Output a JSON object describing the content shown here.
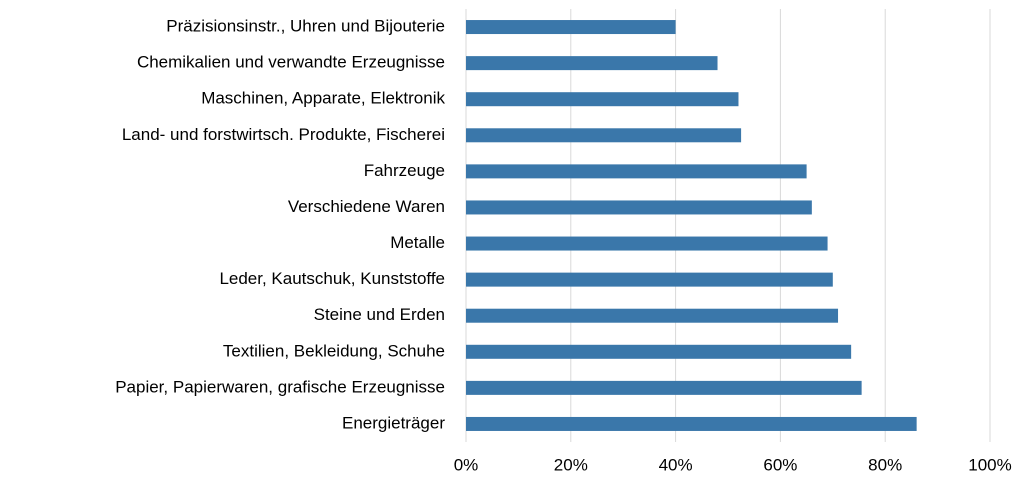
{
  "chart_data": {
    "type": "hbar",
    "categories": [
      "Präzisionsinstr., Uhren und Bijouterie",
      "Chemikalien und verwandte Erzeugnisse",
      "Maschinen, Apparate, Elektronik",
      "Land- und forstwirtsch. Produkte, Fischerei",
      "Fahrzeuge",
      "Verschiedene Waren",
      "Metalle",
      "Leder, Kautschuk, Kunststoffe",
      "Steine und Erden",
      "Textilien, Bekleidung, Schuhe",
      "Papier, Papierwaren, grafische Erzeugnisse",
      "Energieträger"
    ],
    "values": [
      40,
      48,
      52,
      52.5,
      65,
      66,
      69,
      70,
      71,
      73.5,
      75.5,
      86
    ],
    "color": "#3a77aa",
    "xlim": [
      0,
      100
    ],
    "xticks": [
      {
        "value": 0,
        "label": "0%"
      },
      {
        "value": 20,
        "label": "20%"
      },
      {
        "value": 40,
        "label": "40%"
      },
      {
        "value": 60,
        "label": "60%"
      },
      {
        "value": 80,
        "label": "80%"
      },
      {
        "value": 100,
        "label": "100%"
      }
    ],
    "grid": true
  }
}
